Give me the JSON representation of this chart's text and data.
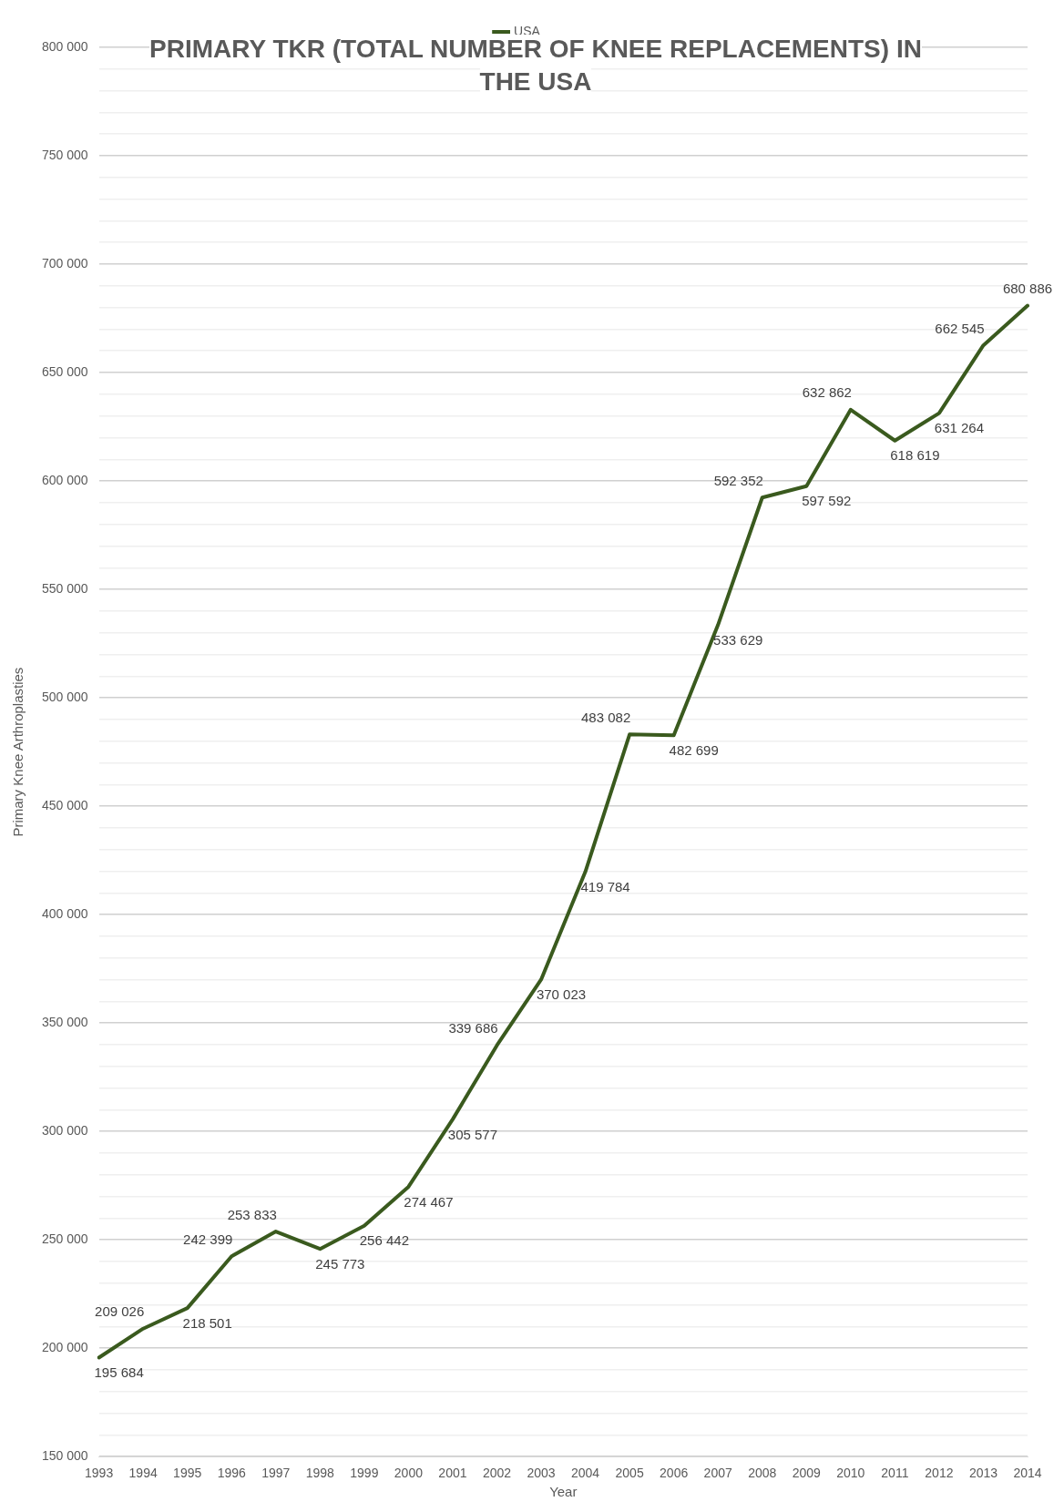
{
  "chart_data": {
    "type": "line",
    "title": "PRIMARY TKR (TOTAL NUMBER OF KNEE REPLACEMENTS) IN THE USA",
    "xlabel": "Year",
    "ylabel": "Primary Knee Arthroplasties",
    "categories": [
      "1993",
      "1994",
      "1995",
      "1996",
      "1997",
      "1998",
      "1999",
      "2000",
      "2001",
      "2002",
      "2003",
      "2004",
      "2005",
      "2006",
      "2007",
      "2008",
      "2009",
      "2010",
      "2011",
      "2012",
      "2013",
      "2014"
    ],
    "series": [
      {
        "name": "USA",
        "color": "#3a5a1e",
        "values": [
          195684,
          209026,
          218501,
          242399,
          253833,
          245773,
          256442,
          274467,
          305577,
          339686,
          370023,
          419784,
          483082,
          482699,
          533629,
          592352,
          597592,
          632862,
          618619,
          631264,
          662545,
          680886
        ],
        "value_labels": [
          "195 684",
          "209 026",
          "218 501",
          "242 399",
          "253 833",
          "245 773",
          "256 442",
          "274 467",
          "305 577",
          "339 686",
          "370 023",
          "419 784",
          "483 082",
          "482 699",
          "533 629",
          "592 352",
          "597 592",
          "632 862",
          "618 619",
          "631 264",
          "662 545",
          "680 886"
        ]
      }
    ],
    "ylim": [
      150000,
      800000
    ],
    "yticks": [
      {
        "value": 150000,
        "label": "150 000"
      },
      {
        "value": 160000,
        "label": null
      },
      {
        "value": 170000,
        "label": null
      },
      {
        "value": 180000,
        "label": null
      },
      {
        "value": 190000,
        "label": null
      },
      {
        "value": 200000,
        "label": "200 000"
      },
      {
        "value": 210000,
        "label": null
      },
      {
        "value": 220000,
        "label": null
      },
      {
        "value": 230000,
        "label": null
      },
      {
        "value": 240000,
        "label": null
      },
      {
        "value": 250000,
        "label": "250 000"
      },
      {
        "value": 260000,
        "label": null
      },
      {
        "value": 270000,
        "label": null
      },
      {
        "value": 280000,
        "label": null
      },
      {
        "value": 290000,
        "label": null
      },
      {
        "value": 300000,
        "label": "300 000"
      },
      {
        "value": 310000,
        "label": null
      },
      {
        "value": 320000,
        "label": null
      },
      {
        "value": 330000,
        "label": null
      },
      {
        "value": 340000,
        "label": null
      },
      {
        "value": 350000,
        "label": "350 000"
      },
      {
        "value": 360000,
        "label": null
      },
      {
        "value": 370000,
        "label": null
      },
      {
        "value": 380000,
        "label": null
      },
      {
        "value": 390000,
        "label": null
      },
      {
        "value": 400000,
        "label": "400 000"
      },
      {
        "value": 410000,
        "label": null
      },
      {
        "value": 420000,
        "label": null
      },
      {
        "value": 430000,
        "label": null
      },
      {
        "value": 440000,
        "label": null
      },
      {
        "value": 450000,
        "label": "450 000"
      },
      {
        "value": 460000,
        "label": null
      },
      {
        "value": 470000,
        "label": null
      },
      {
        "value": 480000,
        "label": null
      },
      {
        "value": 490000,
        "label": null
      },
      {
        "value": 500000,
        "label": "500 000"
      },
      {
        "value": 510000,
        "label": null
      },
      {
        "value": 520000,
        "label": null
      },
      {
        "value": 530000,
        "label": null
      },
      {
        "value": 540000,
        "label": null
      },
      {
        "value": 550000,
        "label": "550 000"
      },
      {
        "value": 560000,
        "label": null
      },
      {
        "value": 570000,
        "label": null
      },
      {
        "value": 580000,
        "label": null
      },
      {
        "value": 590000,
        "label": null
      },
      {
        "value": 600000,
        "label": "600 000"
      },
      {
        "value": 610000,
        "label": null
      },
      {
        "value": 620000,
        "label": null
      },
      {
        "value": 630000,
        "label": null
      },
      {
        "value": 640000,
        "label": null
      },
      {
        "value": 650000,
        "label": "650 000"
      },
      {
        "value": 660000,
        "label": null
      },
      {
        "value": 670000,
        "label": null
      },
      {
        "value": 680000,
        "label": null
      },
      {
        "value": 690000,
        "label": null
      },
      {
        "value": 700000,
        "label": "700 000"
      },
      {
        "value": 710000,
        "label": null
      },
      {
        "value": 720000,
        "label": null
      },
      {
        "value": 730000,
        "label": null
      },
      {
        "value": 740000,
        "label": null
      },
      {
        "value": 750000,
        "label": "750 000"
      },
      {
        "value": 760000,
        "label": null
      },
      {
        "value": 770000,
        "label": null
      },
      {
        "value": 780000,
        "label": null
      },
      {
        "value": 790000,
        "label": null
      },
      {
        "value": 800000,
        "label": "800 000"
      }
    ],
    "grid": "y",
    "legend": "top",
    "marker": "none",
    "line_style": "solid"
  }
}
